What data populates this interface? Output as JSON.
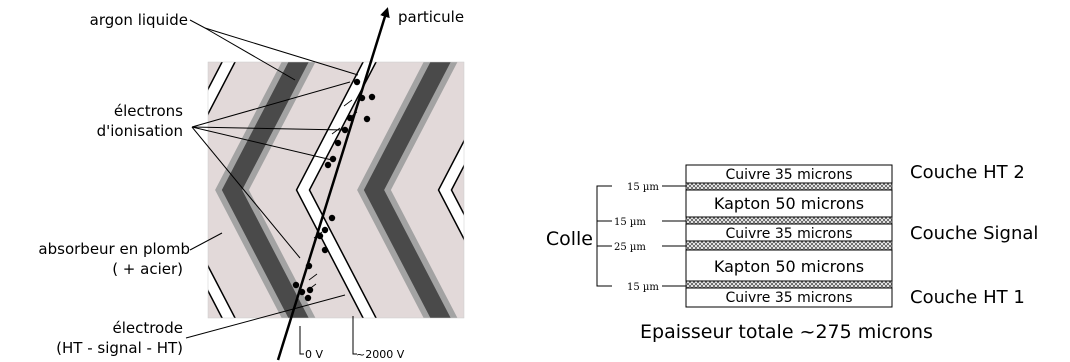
{
  "left_diagram": {
    "labels": {
      "argon": "argon liquide",
      "particle": "particule",
      "electrons_line1": "électrons",
      "electrons_line2": "d'ionisation",
      "absorber_line1": "absorbeur en plomb",
      "absorber_line2": "( + acier)",
      "electrode_line1": "électrode",
      "electrode_line2": "(HT - signal - HT)",
      "voltage_zero": "0 V",
      "voltage_high": "~2000 V"
    },
    "colors": {
      "argon": "#e2d9d9",
      "absorber": "#4a4a4a",
      "steel": "#a3a3a3",
      "electrode": "#ffffff"
    }
  },
  "right_diagram": {
    "layers": [
      {
        "text": "Cuivre 35 microns",
        "side": "Couche HT 2"
      },
      {
        "text": "Kapton 50 microns",
        "side": ""
      },
      {
        "text": "Cuivre 35 microns",
        "side": "Couche Signal"
      },
      {
        "text": "Kapton 50 microns",
        "side": ""
      },
      {
        "text": "Cuivre 35 microns",
        "side": "Couche HT 1"
      }
    ],
    "glue_label": "Colle",
    "glue_thicknesses": [
      "15 µm",
      "15 µm",
      "25 µm",
      "15 µm"
    ],
    "total": "Epaisseur totale ~275 microns"
  }
}
